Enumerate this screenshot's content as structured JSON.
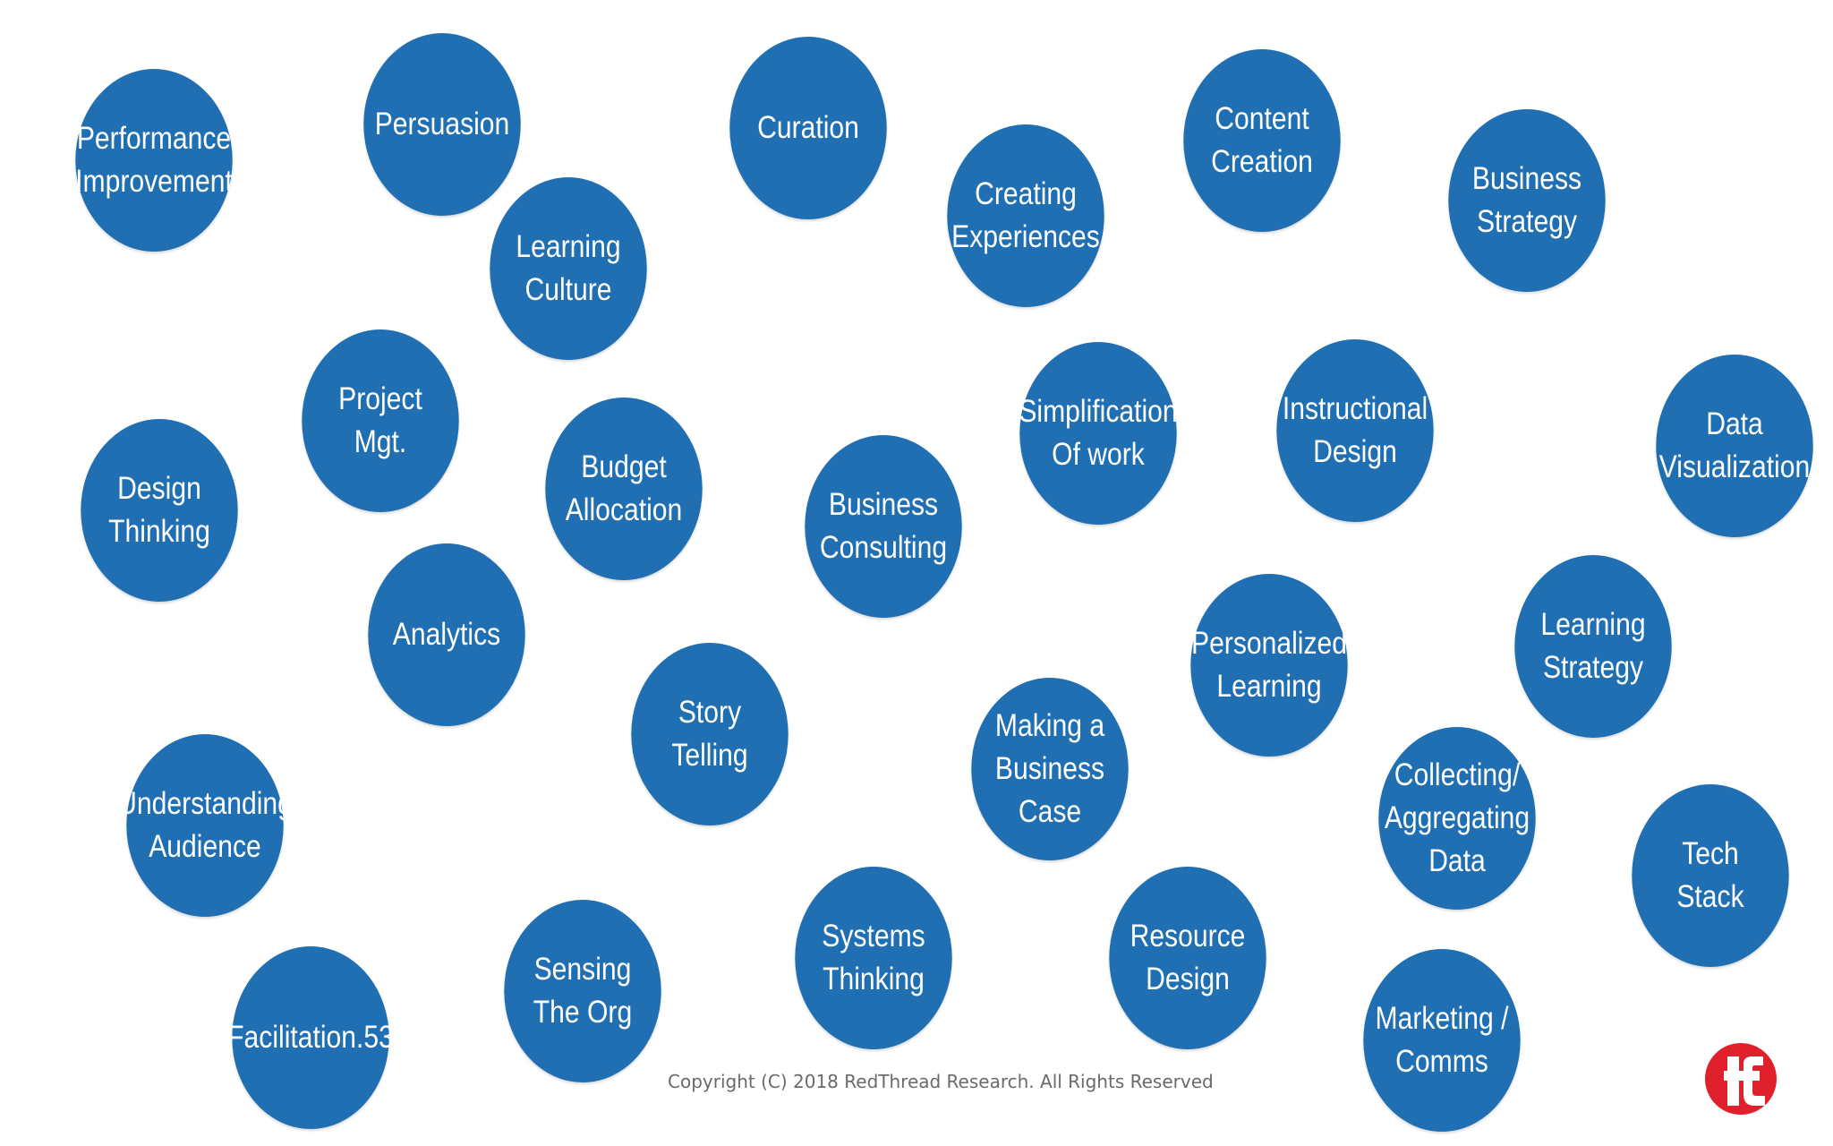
{
  "bubbles": {
    "performance_improvement": "Performance\nImprovement",
    "persuasion": "Persuasion",
    "curation": "Curation",
    "content_creation": "Content\nCreation",
    "creating_experiences": "Creating\nExperiences",
    "business_strategy": "Business\nStrategy",
    "learning_culture": "Learning\nCulture",
    "project_mgt": "Project\nMgt.",
    "design_thinking": "Design\nThinking",
    "budget_allocation": "Budget\nAllocation",
    "business_consulting": "Business\nConsulting",
    "simplification_of_work": "Simplification\nOf work",
    "instructional_design": "Instructional\nDesign",
    "data_visualization": "Data\nVisualization",
    "analytics": "Analytics",
    "personalized_learning": "Personalized\nLearning",
    "learning_strategy": "Learning\nStrategy",
    "story_telling": "Story\nTelling",
    "making_a_business_case": "Making a\nBusiness\nCase",
    "understanding_audience": "Understanding\nAudience",
    "collecting_aggregating_data": "Collecting/\nAggregating\nData",
    "tech_stack": "Tech\nStack",
    "systems_thinking": "Systems\nThinking",
    "resource_design": "Resource\nDesign",
    "sensing_the_org": "Sensing\nThe Org",
    "facilitation": "Facilitation.53",
    "marketing_comms": "Marketing /\nComms"
  },
  "footer": {
    "copyright": "Copyright (C) 2018 RedThread Research. All Rights Reserved"
  },
  "colors": {
    "bubble_fill": "#1f6fb2",
    "bubble_text": "#ffffff",
    "logo_red": "#e0202a"
  },
  "icons": {
    "logo": "redthread-logo-icon"
  }
}
